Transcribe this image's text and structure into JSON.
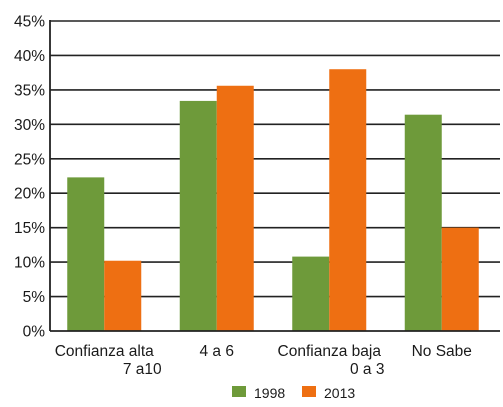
{
  "chart_data": {
    "type": "bar",
    "categories": [
      [
        "Confianza alta",
        "7 a10"
      ],
      [
        "4 a 6"
      ],
      [
        "Confianza baja",
        "0 a 3"
      ],
      [
        "No Sabe"
      ]
    ],
    "series": [
      {
        "name": "1998",
        "color": "#6e9a3a",
        "values": [
          22.3,
          33.4,
          10.8,
          31.4
        ]
      },
      {
        "name": "2013",
        "color": "#ee6f12",
        "values": [
          10.2,
          35.6,
          38.0,
          15.0
        ]
      }
    ],
    "y_ticks": [
      "0%",
      "5%",
      "10%",
      "15%",
      "20%",
      "25%",
      "30%",
      "35%",
      "40%",
      "45%"
    ],
    "ylim": [
      0,
      45
    ],
    "y_unit": "%",
    "grid": true,
    "legend_position": "bottom"
  }
}
